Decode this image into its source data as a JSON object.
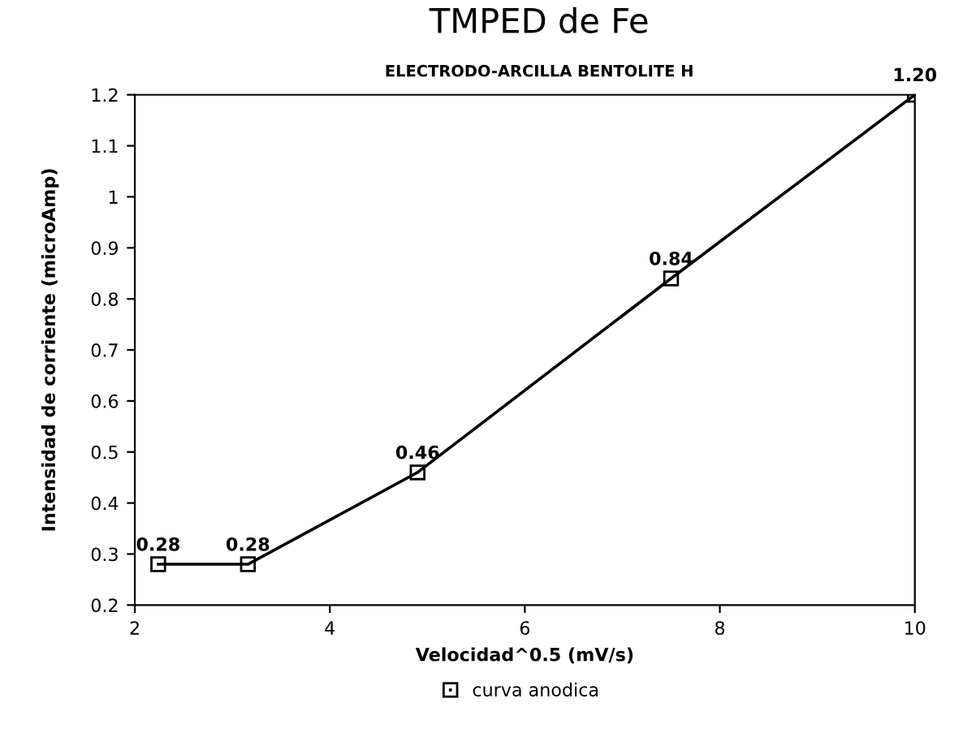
{
  "chart_data": {
    "type": "line",
    "title": "TMPED de Fe",
    "subtitle": "ELECTRODO-ARCILLA BENTOLITE H",
    "xlabel": "Velocidad^0.5 (mV/s)",
    "ylabel": "Intensidad de corriente (microAmp)",
    "x": [
      2.24,
      3.16,
      4.9,
      7.5,
      10
    ],
    "series": [
      {
        "name": "curva anodica",
        "color": "#000000",
        "values": [
          0.28,
          0.28,
          0.46,
          0.84,
          1.2
        ],
        "value_labels": [
          "0.28",
          "0.28",
          "0.46",
          "0.84",
          "1.20"
        ]
      }
    ],
    "xlim": [
      2,
      10
    ],
    "xticks": [
      2,
      4,
      6,
      8,
      10
    ],
    "ylim": [
      0.2,
      1.2
    ],
    "yticks": [
      0.2,
      0.3,
      0.4,
      0.5,
      0.6,
      0.7,
      0.8,
      0.9,
      1,
      1.1,
      1.2
    ],
    "grid": false,
    "legend": "bottom",
    "marker": "square",
    "line_style": "solid"
  }
}
